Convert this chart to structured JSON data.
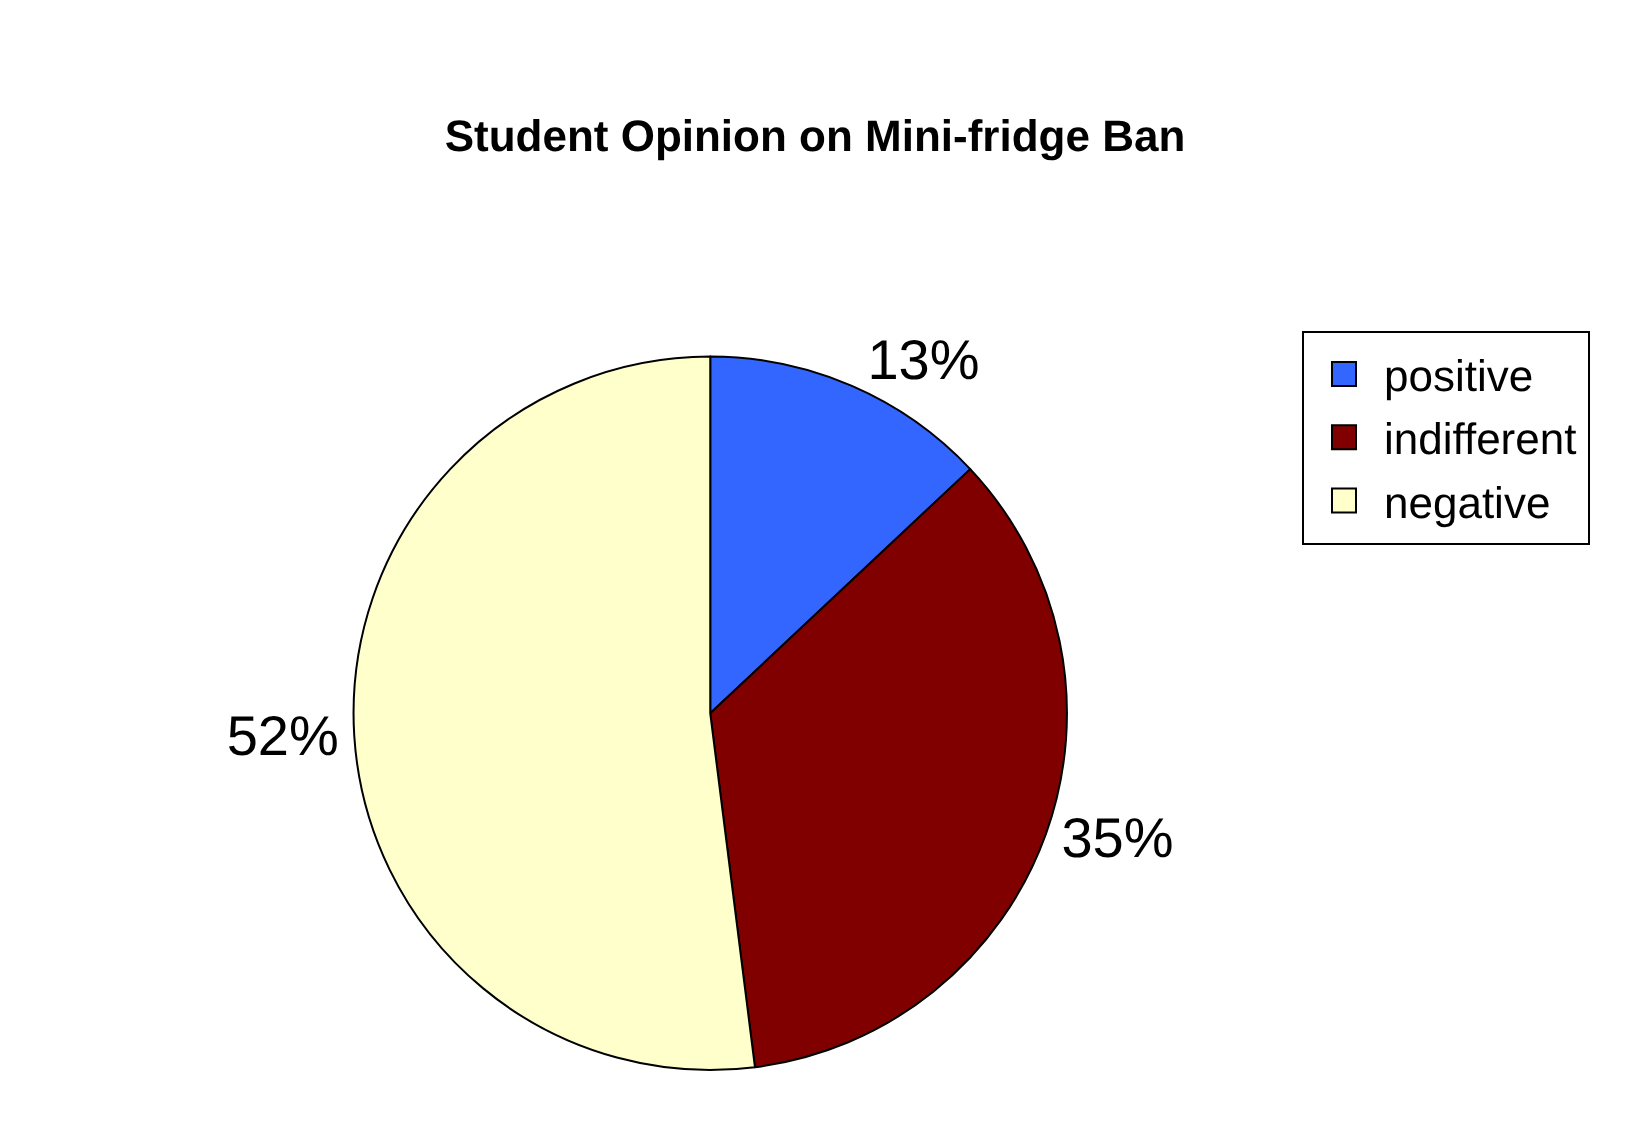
{
  "chart_data": {
    "type": "pie",
    "title": "Student Opinion on Mini-fridge Ban",
    "categories": [
      "positive",
      "indifferent",
      "negative"
    ],
    "values": [
      13,
      35,
      52
    ],
    "value_labels": [
      "13%",
      "35%",
      "52%"
    ],
    "colors": [
      "#3366ff",
      "#800000",
      "#ffffcc"
    ],
    "legend": "top right"
  }
}
